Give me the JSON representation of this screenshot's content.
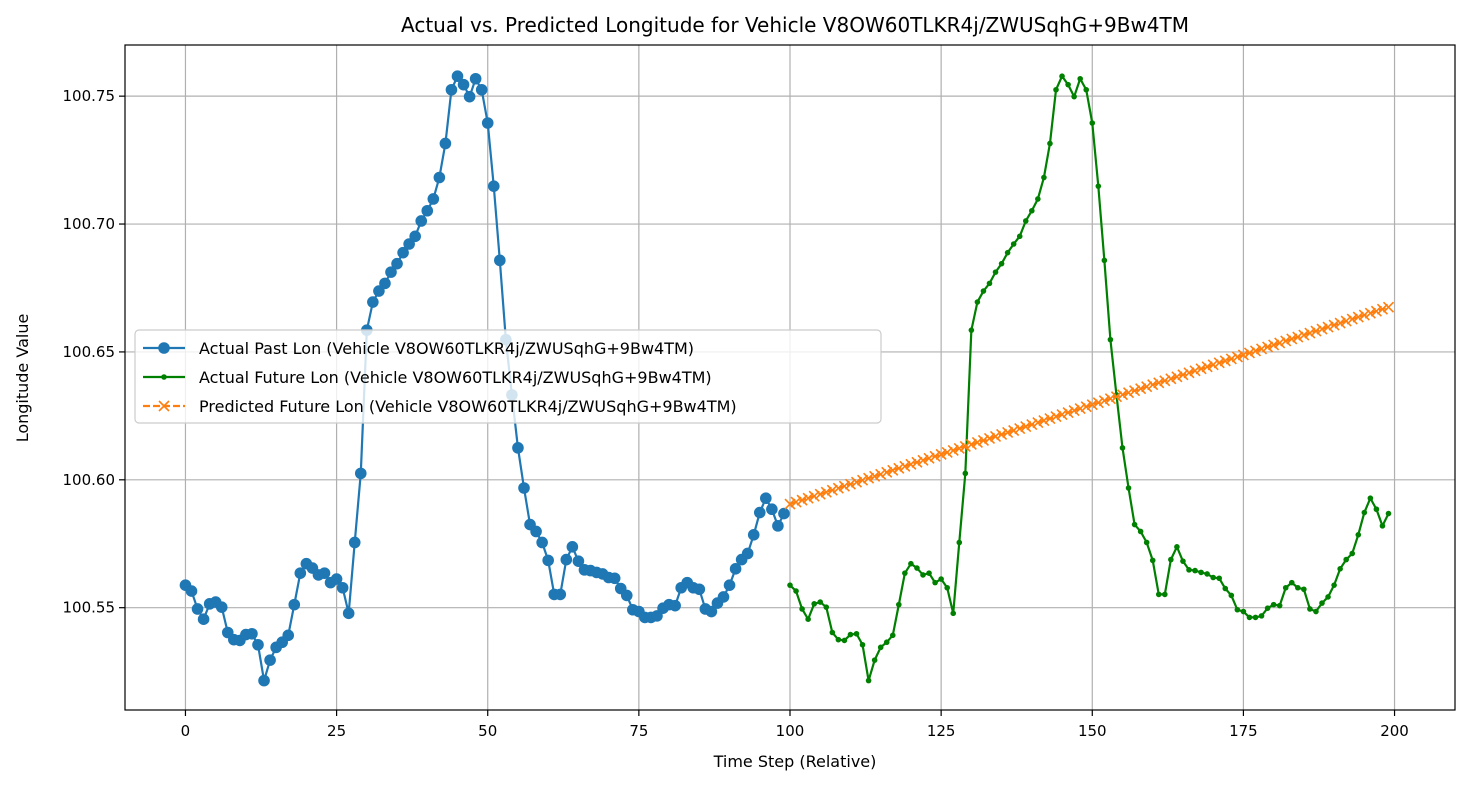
{
  "chart_data": {
    "type": "line",
    "title": "Actual vs. Predicted Longitude for Vehicle V8OW60TLKR4j/ZWUSqhG+9Bw4TM",
    "xlabel": "Time Step (Relative)",
    "ylabel": "Longitude Value",
    "xlim": [
      -10,
      210
    ],
    "ylim": [
      100.51,
      100.77
    ],
    "x_ticks": [
      0,
      25,
      50,
      75,
      100,
      125,
      150,
      175,
      200
    ],
    "x_tick_labels": [
      "0",
      "25",
      "50",
      "75",
      "100",
      "125",
      "150",
      "175",
      "200"
    ],
    "y_ticks": [
      100.55,
      100.6,
      100.65,
      100.7,
      100.75
    ],
    "y_tick_labels": [
      "100.55",
      "100.60",
      "100.65",
      "100.70",
      "100.75"
    ],
    "grid": true,
    "legend_position": "center-left",
    "series": [
      {
        "name": "Actual Past Lon (Vehicle V8OW60TLKR4j/ZWUSqhG+9Bw4TM)",
        "color": "#1f77b4",
        "line_style": "solid",
        "marker": "circle",
        "x_start": 0,
        "values": [
          100.5588,
          100.5565,
          100.5495,
          100.5455,
          100.5515,
          100.5522,
          100.5502,
          100.5403,
          100.5375,
          100.5372,
          100.5395,
          100.5398,
          100.5355,
          100.5215,
          100.5295,
          100.5345,
          100.5365,
          100.5392,
          100.5512,
          100.5635,
          100.5672,
          100.5655,
          100.5628,
          100.5635,
          100.5598,
          100.5612,
          100.5578,
          100.5478,
          100.5755,
          100.6025,
          100.6585,
          100.6695,
          100.6738,
          100.6768,
          100.6812,
          100.6845,
          100.6888,
          100.6922,
          100.6952,
          100.7012,
          100.7052,
          100.7098,
          100.7182,
          100.7315,
          100.7525,
          100.7578,
          100.7545,
          100.7498,
          100.7568,
          100.7525,
          100.7395,
          100.7148,
          100.6858,
          100.6548,
          100.6332,
          100.6125,
          100.5968,
          100.5825,
          100.5798,
          100.5755,
          100.5685,
          100.5552,
          100.5552,
          100.5688,
          100.5738,
          100.5682,
          100.5648,
          100.5645,
          100.5638,
          100.5632,
          100.5618,
          100.5615,
          100.5575,
          100.5548,
          100.5492,
          100.5485,
          100.5462,
          100.5462,
          100.5468,
          100.5498,
          100.5512,
          100.5508,
          100.5578,
          100.5598,
          100.5578,
          100.5572,
          100.5495,
          100.5485,
          100.5518,
          100.5542,
          100.5588,
          100.5652,
          100.5688,
          100.5712,
          100.5785,
          100.5872,
          100.5928,
          100.5885,
          100.582,
          100.5868
        ]
      },
      {
        "name": "Actual Future Lon (Vehicle V8OW60TLKR4j/ZWUSqhG+9Bw4TM)",
        "color": "#008000",
        "line_style": "solid",
        "marker": "small-dot",
        "x_start": 100,
        "values": [
          100.5588,
          100.5565,
          100.5495,
          100.5455,
          100.5515,
          100.5522,
          100.5502,
          100.5403,
          100.5375,
          100.5372,
          100.5395,
          100.5398,
          100.5355,
          100.5215,
          100.5295,
          100.5345,
          100.5365,
          100.5392,
          100.5512,
          100.5635,
          100.5672,
          100.5655,
          100.5628,
          100.5635,
          100.5598,
          100.5612,
          100.5578,
          100.5478,
          100.5755,
          100.6025,
          100.6585,
          100.6695,
          100.6738,
          100.6768,
          100.6812,
          100.6845,
          100.6888,
          100.6922,
          100.6952,
          100.7012,
          100.7052,
          100.7098,
          100.7182,
          100.7315,
          100.7525,
          100.7578,
          100.7545,
          100.7498,
          100.7568,
          100.7525,
          100.7395,
          100.7148,
          100.6858,
          100.6548,
          100.6332,
          100.6125,
          100.5968,
          100.5825,
          100.5798,
          100.5755,
          100.5685,
          100.5552,
          100.5552,
          100.5688,
          100.5738,
          100.5682,
          100.5648,
          100.5645,
          100.5638,
          100.5632,
          100.5618,
          100.5615,
          100.5575,
          100.5548,
          100.5492,
          100.5485,
          100.5462,
          100.5462,
          100.5468,
          100.5498,
          100.5512,
          100.5508,
          100.5578,
          100.5598,
          100.5578,
          100.5572,
          100.5495,
          100.5485,
          100.5518,
          100.5542,
          100.5588,
          100.5652,
          100.5688,
          100.5712,
          100.5785,
          100.5872,
          100.5928,
          100.5885,
          100.582,
          100.5868
        ]
      },
      {
        "name": "Predicted Future Lon (Vehicle V8OW60TLKR4j/ZWUSqhG+9Bw4TM)",
        "color": "#ff7f0e",
        "line_style": "dashed",
        "marker": "x",
        "x_start": 100,
        "y_start": 100.5905,
        "y_end": 100.6675,
        "count": 100
      }
    ]
  }
}
